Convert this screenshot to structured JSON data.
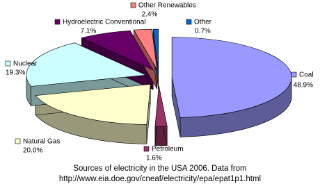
{
  "chart_data": {
    "type": "pie",
    "categories": [
      "Coal",
      "Petroleum",
      "Natural Gas",
      "Nuclear",
      "Hydroelectric Conventional",
      "Other Renewables",
      "Other"
    ],
    "values": [
      48.9,
      1.6,
      20.0,
      19.3,
      7.1,
      2.4,
      0.7
    ],
    "value_labels": [
      "48.9%",
      "1.6%",
      "20.0%",
      "19.3%",
      "7.1%",
      "2.4%",
      "0.7%"
    ],
    "colors": [
      "#9999ff",
      "#993366",
      "#ffffcc",
      "#ccffff",
      "#660066",
      "#ff8080",
      "#0066cc"
    ],
    "caption_lines": [
      "Sources of electricity in the USA 2006. Data from",
      "http://www.eia.doe.gov/cneaf/electricity/epa/epat1p1.html"
    ]
  }
}
